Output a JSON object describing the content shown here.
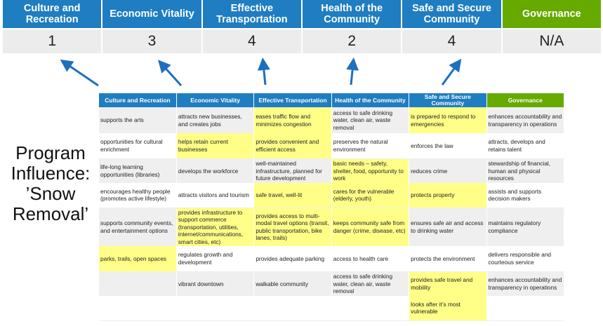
{
  "scores": {
    "columns": [
      {
        "label": "Culture and Recreation",
        "score": "1"
      },
      {
        "label": "Economic Vitality",
        "score": "3"
      },
      {
        "label": "Effective Transportation",
        "score": "4"
      },
      {
        "label": "Health of the Community",
        "score": "2"
      },
      {
        "label": "Safe and Secure Community",
        "score": "4"
      },
      {
        "label": "Governance",
        "score": "N/A"
      }
    ]
  },
  "side_label": {
    "line1": "Program",
    "line2": "Influence:",
    "line3": "’Snow",
    "line4": "Removal’"
  },
  "colors": {
    "header_blue": "#1f7dc1",
    "governance_green": "#66aa00",
    "highlight": "#ffff88",
    "arrow": "#1e6fbf"
  },
  "table": {
    "headers": [
      "Culture and Recreation",
      "Economic Vitality",
      "Effective Transportation",
      "Health of the Community",
      "Safe and Secure Community",
      "Governance"
    ],
    "rows": [
      [
        {
          "t": "supports the arts"
        },
        {
          "t": "attracts new businesses, and creates jobs"
        },
        {
          "t": "eases traffic flow and minimizes congestion",
          "h": true
        },
        {
          "t": "access to safe drinking water, clean air, waste removal"
        },
        {
          "t": "is prepared to respond to emergencies",
          "h": true
        },
        {
          "t": "enhances accountability and transparency in operations"
        }
      ],
      [
        {
          "t": "opportunities for cultural enrichment"
        },
        {
          "t": "helps retain current businesses",
          "h": true
        },
        {
          "t": "provides convenient and efficient access",
          "h": true
        },
        {
          "t": "preserves the natural environment"
        },
        {
          "t": "enforces the law"
        },
        {
          "t": "attracts, develops and retains talent"
        }
      ],
      [
        {
          "t": "life-long learning opportunities (libraries)"
        },
        {
          "t": "develops the workforce"
        },
        {
          "t": "well-maintained infrastructure, planned for future development"
        },
        {
          "t": "basic needs – safety, shelter, food, opportunity to work",
          "h": true
        },
        {
          "t": "reduces crime"
        },
        {
          "t": "stewardship of financial, human and physical resources"
        }
      ],
      [
        {
          "t": "encourages healthy people (promotes active lifestyle)"
        },
        {
          "t": "attracts visitors and tourism"
        },
        {
          "t": "safe travel, well-lit",
          "h": true
        },
        {
          "t": "cares for the vulnerable (elderly, youth)",
          "h": true
        },
        {
          "t": "protects property",
          "h": true
        },
        {
          "t": "assists and supports decision makers"
        }
      ],
      [
        {
          "t": "supports community events, and entertainment options"
        },
        {
          "t": "provides infrastructure to support commerce (transportation, utilities, internet/communications, smart cities, etc)",
          "h": true
        },
        {
          "t": "provides access to multi-modal travel options (transit, public transportation, bike lanes, trails)",
          "h": true
        },
        {
          "t": "keeps community safe from danger (crime, disease, etc)",
          "h": true
        },
        {
          "t": "ensures safe air and access to drinking water"
        },
        {
          "t": "maintains regulatory compliance"
        }
      ],
      [
        {
          "t": "parks, trails, open spaces",
          "h": true
        },
        {
          "t": "regulates growth and development"
        },
        {
          "t": "provides adequate parking"
        },
        {
          "t": "access to health care"
        },
        {
          "t": "protects the environment"
        },
        {
          "t": "delivers responsible and courteous service"
        }
      ],
      [
        {
          "t": ""
        },
        {
          "t": "vibrant downtown"
        },
        {
          "t": "walkable community"
        },
        {
          "t": "access to safe drinking water, clean air, waste removal"
        },
        {
          "t": "provides safe travel and mobility",
          "h": true
        },
        {
          "t": "enhances accountability and transparency in operations"
        }
      ],
      [
        {
          "t": ""
        },
        {
          "t": ""
        },
        {
          "t": ""
        },
        {
          "t": ""
        },
        {
          "t": "looks after it’s most vulnerable",
          "h": true
        },
        {
          "t": ""
        }
      ]
    ]
  }
}
